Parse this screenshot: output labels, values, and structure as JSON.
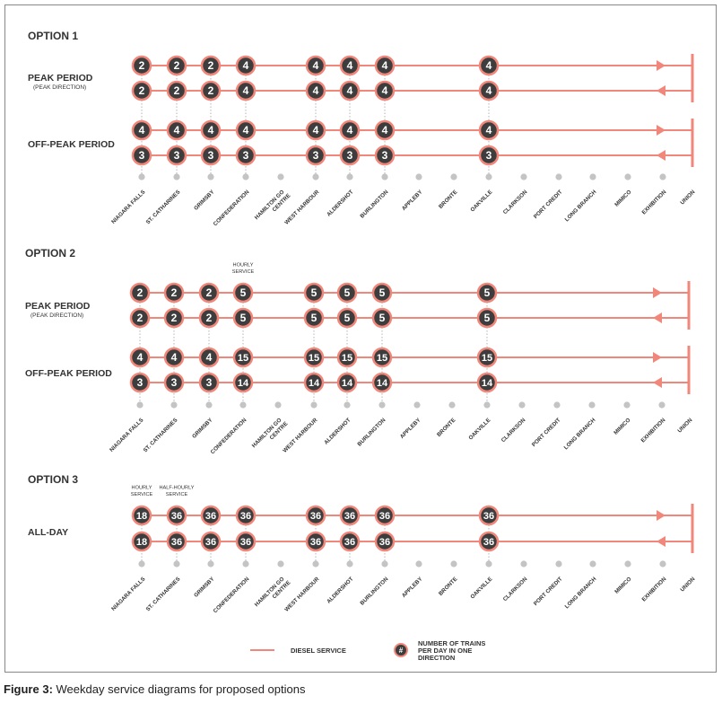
{
  "colors": {
    "line": "#f1877a",
    "circle_fill": "#3d3d3d",
    "circle_ring": "#f1877a",
    "station_dot": "#c4c4c4",
    "text": "#333333"
  },
  "stations": [
    "NIAGARA FALLS",
    "ST. CATHARINES",
    "GRIMSBY",
    "CONFEDERATION",
    "HAMILTON GO CENTRE",
    "WEST HARBOUR",
    "ALDERSHOT",
    "BURLINGTON",
    "APPLEBY",
    "BRONTE",
    "OAKVILLE",
    "CLARKSON",
    "PORT CREDIT",
    "LONG BRANCH",
    "MIMICO",
    "EXHIBITION",
    "UNION"
  ],
  "options": [
    {
      "title": "OPTION 1",
      "groups": [
        {
          "label": "PEAK PERIOD",
          "sublabel": "(PEAK DIRECTION)",
          "rows": [
            {
              "direction": "east",
              "trains": [
                "2",
                "2",
                "2",
                "4",
                null,
                "4",
                "4",
                "4",
                null,
                null,
                "4",
                null,
                null,
                null,
                null,
                null
              ]
            },
            {
              "direction": "west",
              "trains": [
                "2",
                "2",
                "2",
                "4",
                null,
                "4",
                "4",
                "4",
                null,
                null,
                "4",
                null,
                null,
                null,
                null,
                null
              ]
            }
          ]
        },
        {
          "label": "OFF-PEAK PERIOD",
          "sublabel": "",
          "rows": [
            {
              "direction": "east",
              "trains": [
                "4",
                "4",
                "4",
                "4",
                null,
                "4",
                "4",
                "4",
                null,
                null,
                "4",
                null,
                null,
                null,
                null,
                null
              ]
            },
            {
              "direction": "west",
              "trains": [
                "3",
                "3",
                "3",
                "3",
                null,
                "3",
                "3",
                "3",
                null,
                null,
                "3",
                null,
                null,
                null,
                null,
                null
              ]
            }
          ]
        }
      ],
      "annotations": []
    },
    {
      "title": "OPTION 2",
      "groups": [
        {
          "label": "PEAK PERIOD",
          "sublabel": "(PEAK DIRECTION)",
          "rows": [
            {
              "direction": "east",
              "trains": [
                "2",
                "2",
                "2",
                "5",
                null,
                "5",
                "5",
                "5",
                null,
                null,
                "5",
                null,
                null,
                null,
                null,
                null
              ]
            },
            {
              "direction": "west",
              "trains": [
                "2",
                "2",
                "2",
                "5",
                null,
                "5",
                "5",
                "5",
                null,
                null,
                "5",
                null,
                null,
                null,
                null,
                null
              ]
            }
          ]
        },
        {
          "label": "OFF-PEAK PERIOD",
          "sublabel": "",
          "rows": [
            {
              "direction": "east",
              "trains": [
                "4",
                "4",
                "4",
                "15",
                null,
                "15",
                "15",
                "15",
                null,
                null,
                "15",
                null,
                null,
                null,
                null,
                null
              ]
            },
            {
              "direction": "west",
              "trains": [
                "3",
                "3",
                "3",
                "14",
                null,
                "14",
                "14",
                "14",
                null,
                null,
                "14",
                null,
                null,
                null,
                null,
                null
              ]
            }
          ]
        }
      ],
      "annotations": [
        {
          "station_index": 3,
          "lines": [
            "HOURLY",
            "SERVICE"
          ]
        }
      ]
    },
    {
      "title": "OPTION 3",
      "groups": [
        {
          "label": "ALL-DAY",
          "sublabel": "",
          "rows": [
            {
              "direction": "east",
              "trains": [
                "18",
                "36",
                "36",
                "36",
                null,
                "36",
                "36",
                "36",
                null,
                null,
                "36",
                null,
                null,
                null,
                null,
                null
              ]
            },
            {
              "direction": "west",
              "trains": [
                "18",
                "36",
                "36",
                "36",
                null,
                "36",
                "36",
                "36",
                null,
                null,
                "36",
                null,
                null,
                null,
                null,
                null
              ]
            }
          ]
        }
      ],
      "annotations": [
        {
          "station_index": 0,
          "lines": [
            "HOURLY",
            "SERVICE"
          ]
        },
        {
          "station_index": 1,
          "lines": [
            "HALF-HOURLY",
            "SERVICE"
          ]
        }
      ]
    }
  ],
  "legend": {
    "line_label": "DIESEL SERVICE",
    "circle_symbol": "#",
    "circle_label_lines": [
      "NUMBER OF TRAINS",
      "PER DAY IN ONE",
      "DIRECTION"
    ]
  },
  "caption": {
    "label": "Figure 3:",
    "text": " Weekday service diagrams for proposed options"
  }
}
